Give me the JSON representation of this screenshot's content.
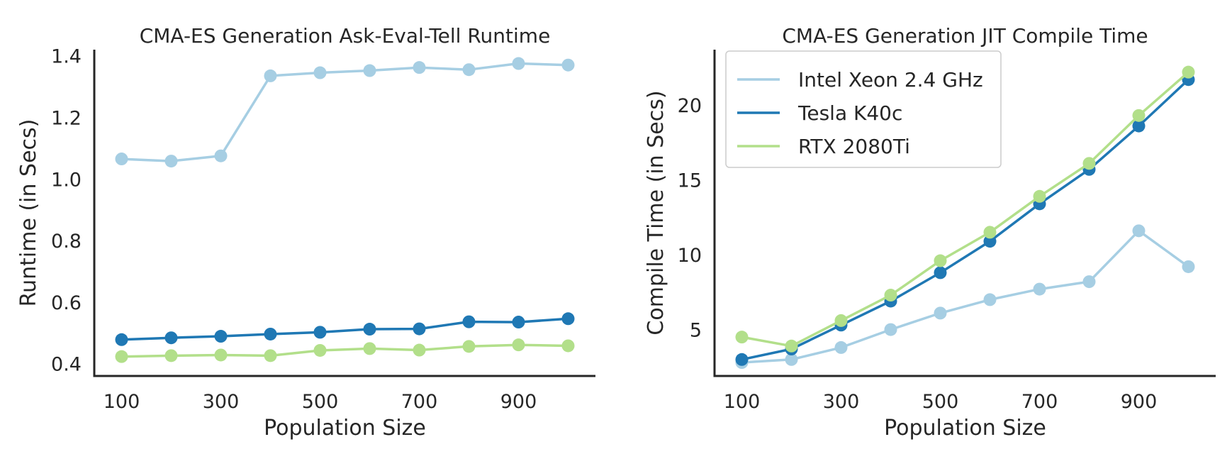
{
  "chart_data": [
    {
      "type": "line",
      "title": "CMA-ES Generation Ask-Eval-Tell Runtime",
      "xlabel": "Population Size",
      "ylabel": "Runtime (in Secs)",
      "xlim": [
        45,
        1055
      ],
      "ylim": [
        0.36,
        1.42
      ],
      "xticks": [
        100,
        300,
        500,
        700,
        900
      ],
      "yticks": [
        0.4,
        0.6,
        0.8,
        1.0,
        1.2,
        1.4
      ],
      "ytick_labels": [
        "0.4",
        "0.6",
        "0.8",
        "1.0",
        "1.2",
        "1.4"
      ],
      "grid": false,
      "x": [
        100,
        200,
        300,
        400,
        500,
        600,
        700,
        800,
        900,
        1000
      ],
      "series": [
        {
          "color": "#a6cee3",
          "values": [
            1.065,
            1.058,
            1.075,
            1.335,
            1.345,
            1.352,
            1.362,
            1.355,
            1.375,
            1.37
          ]
        },
        {
          "color": "#1f78b4",
          "values": [
            0.478,
            0.484,
            0.489,
            0.496,
            0.502,
            0.512,
            0.513,
            0.536,
            0.535,
            0.546
          ]
        },
        {
          "color": "#b2df8a",
          "values": [
            0.423,
            0.426,
            0.428,
            0.426,
            0.443,
            0.449,
            0.444,
            0.456,
            0.461,
            0.458
          ]
        }
      ]
    },
    {
      "type": "line",
      "title": "CMA-ES Generation JIT Compile Time",
      "xlabel": "Population Size",
      "ylabel": "Compile Time (in Secs)",
      "xlim": [
        45,
        1055
      ],
      "ylim": [
        1.9,
        23.7
      ],
      "xticks": [
        100,
        300,
        500,
        700,
        900
      ],
      "yticks": [
        5,
        10,
        15,
        20
      ],
      "ytick_labels": [
        "5",
        "10",
        "15",
        "20"
      ],
      "grid": false,
      "legend_position": "top-left",
      "x": [
        100,
        200,
        300,
        400,
        500,
        600,
        700,
        800,
        900,
        1000
      ],
      "series": [
        {
          "name": "Intel Xeon 2.4 GHz",
          "color": "#a6cee3",
          "values": [
            2.8,
            3.0,
            3.8,
            5.0,
            6.1,
            7.0,
            7.7,
            8.2,
            11.6,
            9.2
          ]
        },
        {
          "name": "Tesla K40c",
          "color": "#1f78b4",
          "values": [
            3.0,
            3.7,
            5.3,
            6.9,
            8.8,
            10.9,
            13.4,
            15.7,
            18.6,
            21.7
          ]
        },
        {
          "name": "RTX 2080Ti",
          "color": "#b2df8a",
          "values": [
            4.5,
            3.9,
            5.6,
            7.3,
            9.6,
            11.5,
            13.9,
            16.1,
            19.3,
            22.2
          ]
        }
      ]
    }
  ]
}
